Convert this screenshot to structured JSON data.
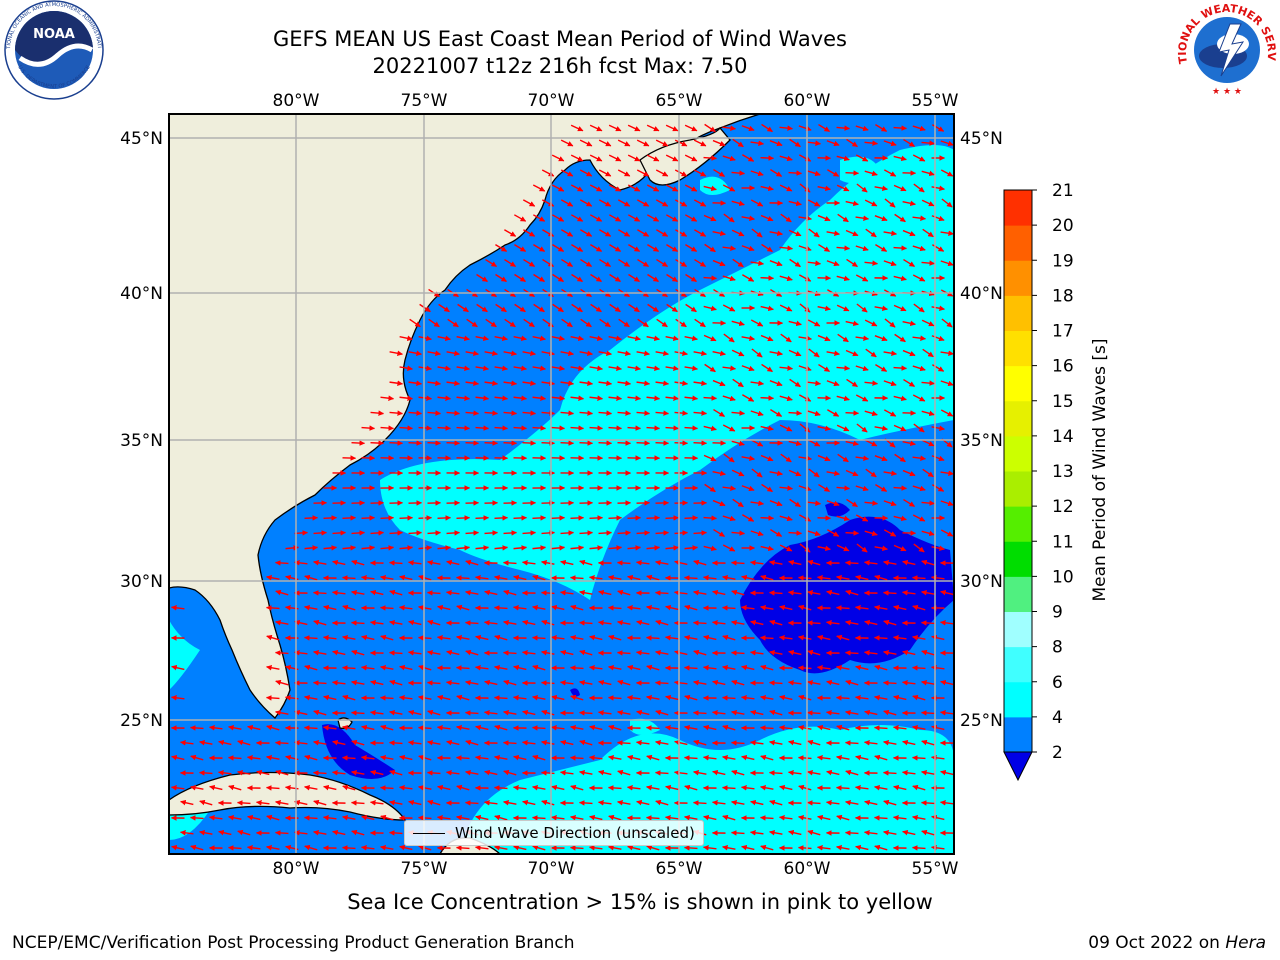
{
  "header": {
    "title": "GEFS MEAN US East Coast Mean Period of Wind Waves",
    "subtitle": "20221007 t12z 216h fcst   Max: 7.50"
  },
  "map": {
    "lon_labels": [
      "80°W",
      "75°W",
      "70°W",
      "65°W",
      "60°W",
      "55°W"
    ],
    "lat_labels": [
      "45°N",
      "40°N",
      "35°N",
      "30°N",
      "25°N"
    ],
    "legend_label": "Wind Wave Direction (unscaled)",
    "colors": {
      "land": "#efeedc",
      "ocean_2_4": "#0080ff",
      "ocean_4_6": "#00ffff",
      "ocean_lt2": "#0000e6",
      "arrow": "#ff0000"
    }
  },
  "colorbar": {
    "label": "Mean Period of Wind Waves [s]",
    "ticks": [
      "2",
      "4",
      "6",
      "8",
      "9",
      "10",
      "11",
      "12",
      "13",
      "14",
      "15",
      "16",
      "17",
      "18",
      "19",
      "20",
      "21"
    ],
    "colors": [
      "#0080ff",
      "#00ffff",
      "#40ffff",
      "#a0ffff",
      "#50f080",
      "#00dd00",
      "#55ee00",
      "#aaee00",
      "#ccff00",
      "#e6f000",
      "#ffff00",
      "#ffe000",
      "#ffc000",
      "#ff9000",
      "#ff6000",
      "#ff3000",
      "#ff0000"
    ]
  },
  "footnote": "Sea Ice Concentration > 15% is shown in pink to yellow",
  "credits": {
    "left": "NCEP/EMC/Verification Post Processing Product Generation Branch",
    "right_prefix": "09 Oct 2022 on ",
    "right_machine": "Hera"
  },
  "logos": {
    "noaa_text": "NOAA",
    "noaa_ring_top": "NATIONAL OCEANIC AND ATMOSPHERIC ADMINISTRATION",
    "noaa_ring_bottom": "U.S. DEPARTMENT OF COMMERCE",
    "nws_ring": "NATIONAL WEATHER SERVICE"
  }
}
